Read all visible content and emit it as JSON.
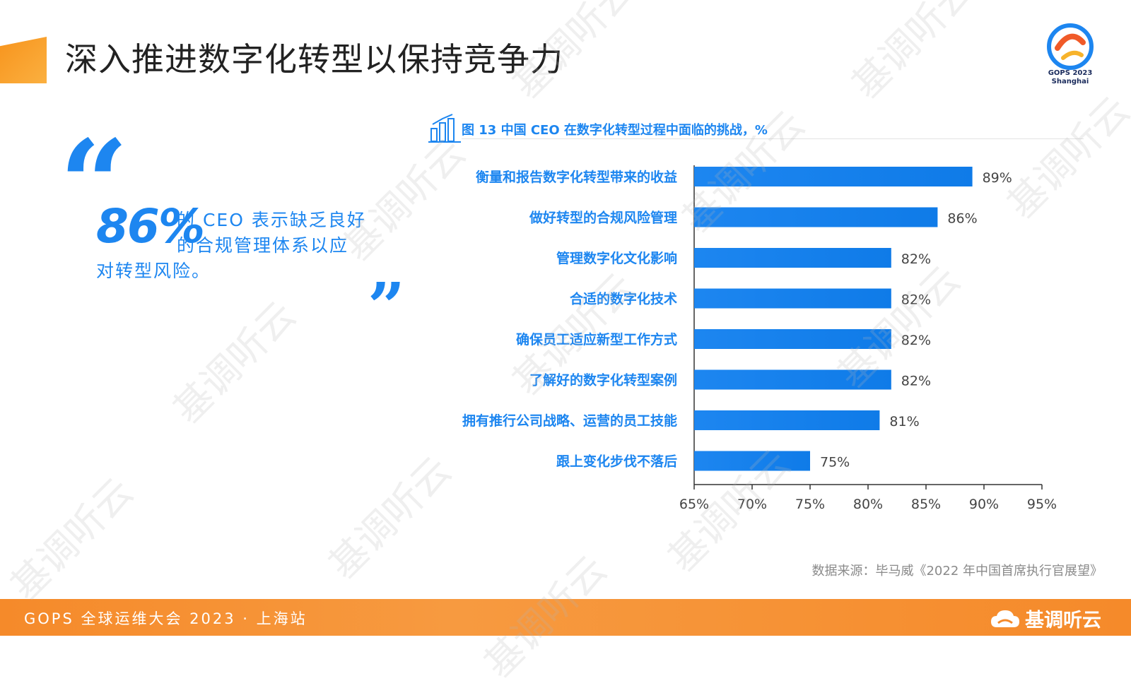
{
  "slide": {
    "title": "深入推进数字化转型以保持竞争力"
  },
  "logo": {
    "line1": "GOPS 2023",
    "line2": "Shanghai"
  },
  "callout": {
    "percent": "86%",
    "line1": "的 CEO 表示缺乏良好",
    "line2": "的合规管理体系以应",
    "line3": "对转型风险。"
  },
  "chart_title": "图 13 中国 CEO 在数字化转型过程中面临的挑战，%",
  "chart_data": {
    "type": "bar",
    "orientation": "horizontal",
    "title": "图 13 中国 CEO 在数字化转型过程中面临的挑战，%",
    "categories": [
      "衡量和报告数字化转型带来的收益",
      "做好转型的合规风险管理",
      "管理数字化文化影响",
      "合适的数字化技术",
      "确保员工适应新型工作方式",
      "了解好的数字化转型案例",
      "拥有推行公司战略、运营的员工技能",
      "跟上变化步伐不落后"
    ],
    "values": [
      89,
      86,
      82,
      82,
      82,
      82,
      81,
      75
    ],
    "value_labels": [
      "89%",
      "86%",
      "82%",
      "82%",
      "82%",
      "82%",
      "81%",
      "75%"
    ],
    "xlim": [
      65,
      95
    ],
    "xticks": [
      "65%",
      "70%",
      "75%",
      "80%",
      "85%",
      "90%",
      "95%"
    ],
    "xtick_values": [
      65,
      70,
      75,
      80,
      85,
      90,
      95
    ],
    "bar_color": "#1d86f0",
    "grid": false
  },
  "source": "数据来源：毕马威《2022 年中国首席执行官展望》",
  "footer": {
    "event": "GOPS 全球运维大会 2023 · 上海站",
    "brand": "基调听云"
  },
  "watermark": "基调听云",
  "colors": {
    "accent_blue": "#1d86f0",
    "accent_orange": "#f58a2a"
  }
}
